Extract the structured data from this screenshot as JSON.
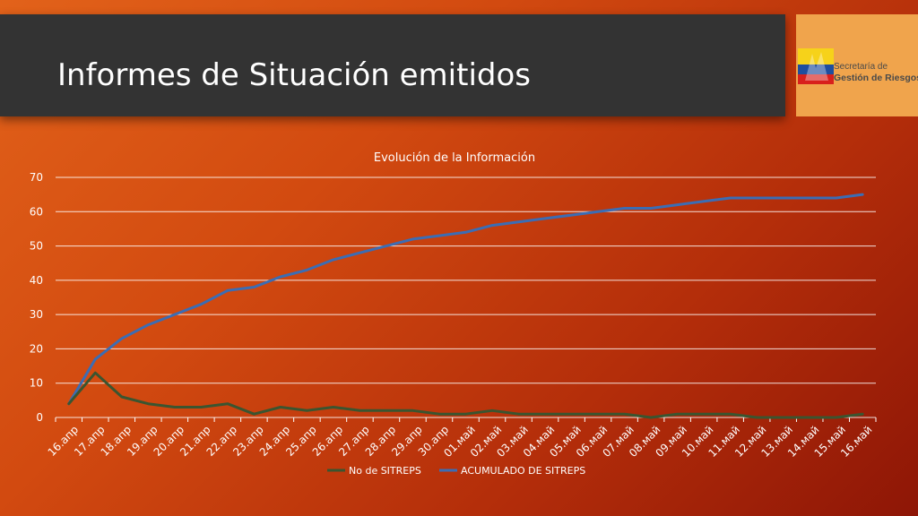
{
  "slide": {
    "title": "Informes de Situación emitidos",
    "logo_line1": "Secretaría de",
    "logo_line2": "Gestión de Riesgos"
  },
  "colors": {
    "series_1": "#3a5530",
    "series_2": "#3b6db4",
    "gridline": "#ffffff"
  },
  "chart_data": {
    "type": "line",
    "title": "Evolución de la Información",
    "xlabel": "",
    "ylabel": "",
    "ylim": [
      0,
      70
    ],
    "yticks": [
      0,
      10,
      20,
      30,
      40,
      50,
      60,
      70
    ],
    "grid": true,
    "legend_position": "bottom",
    "categories": [
      "16.апр",
      "17.апр",
      "18.апр",
      "19.апр",
      "20.апр",
      "21.апр",
      "22.апр",
      "23.апр",
      "24.апр",
      "25.апр",
      "26.апр",
      "27.апр",
      "28.апр",
      "29.апр",
      "30.апр",
      "01.май",
      "02.май",
      "03.май",
      "04.май",
      "05.май",
      "06.май",
      "07.май",
      "08.май",
      "09.май",
      "10.май",
      "11.май",
      "12.май",
      "13.май",
      "14.май",
      "15.май",
      "16.май"
    ],
    "series": [
      {
        "name": "No de SITREPS",
        "values": [
          4,
          13,
          6,
          4,
          3,
          3,
          4,
          1,
          3,
          2,
          3,
          2,
          2,
          2,
          1,
          1,
          2,
          1,
          1,
          1,
          1,
          1,
          0,
          1,
          1,
          1,
          0,
          0,
          0,
          0,
          1
        ]
      },
      {
        "name": "ACUMULADO DE SITREPS",
        "values": [
          4,
          17,
          23,
          27,
          30,
          33,
          37,
          38,
          41,
          43,
          46,
          48,
          50,
          52,
          53,
          54,
          56,
          57,
          58,
          59,
          60,
          61,
          61,
          62,
          63,
          64,
          64,
          64,
          64,
          64,
          65
        ]
      }
    ]
  }
}
